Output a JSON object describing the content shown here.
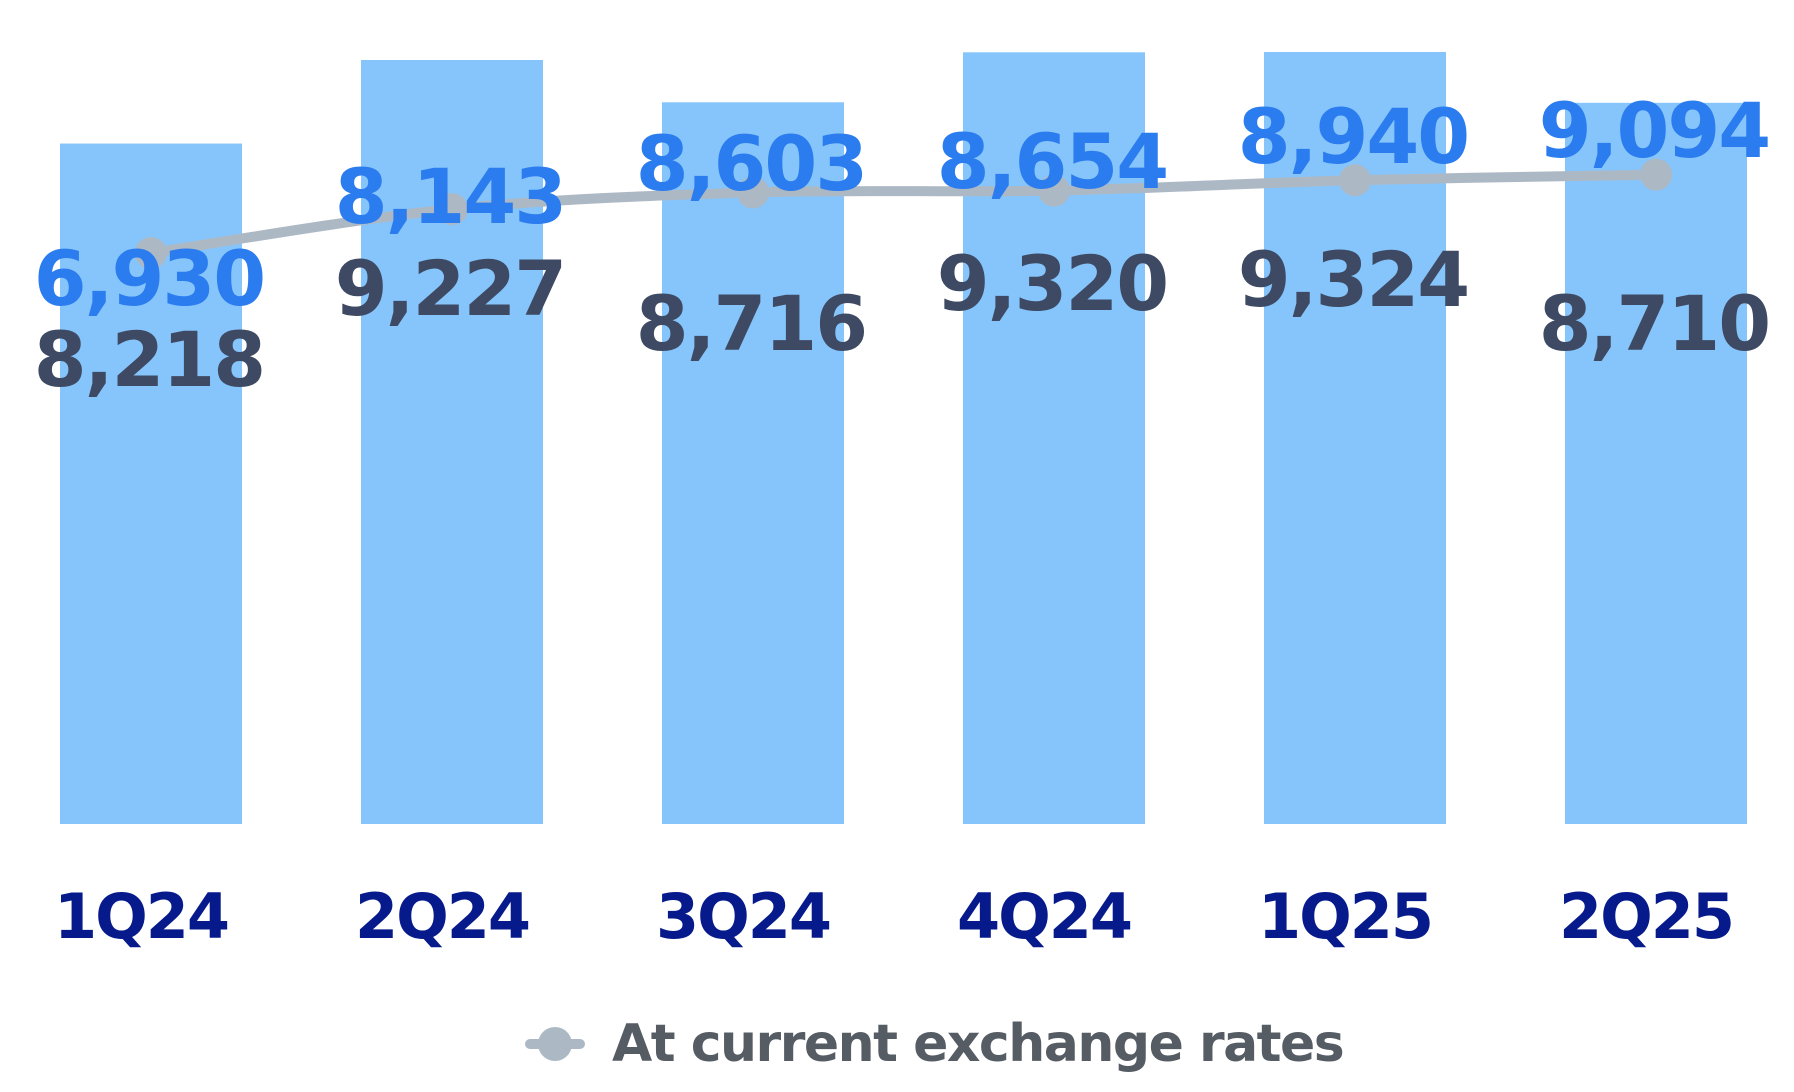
{
  "chart_data": {
    "type": "bar",
    "categories": [
      "1Q24",
      "2Q24",
      "3Q24",
      "4Q24",
      "1Q25",
      "2Q25"
    ],
    "series": [
      {
        "type": "bar",
        "values": [
          8218,
          9227,
          8716,
          9320,
          9324,
          8710
        ]
      },
      {
        "type": "line",
        "name": "At current exchange rates",
        "values": [
          6930,
          8143,
          8603,
          8654,
          8940,
          9094
        ]
      }
    ],
    "colors": {
      "bar": "#86c5fb",
      "bar_label": "#3e4a63",
      "line": "#adb8c5",
      "line_label": "#2b7cef",
      "category": "#061a8c"
    },
    "legend": {
      "position": "bottom",
      "entries": [
        "At current exchange rates"
      ]
    },
    "grid": false
  }
}
